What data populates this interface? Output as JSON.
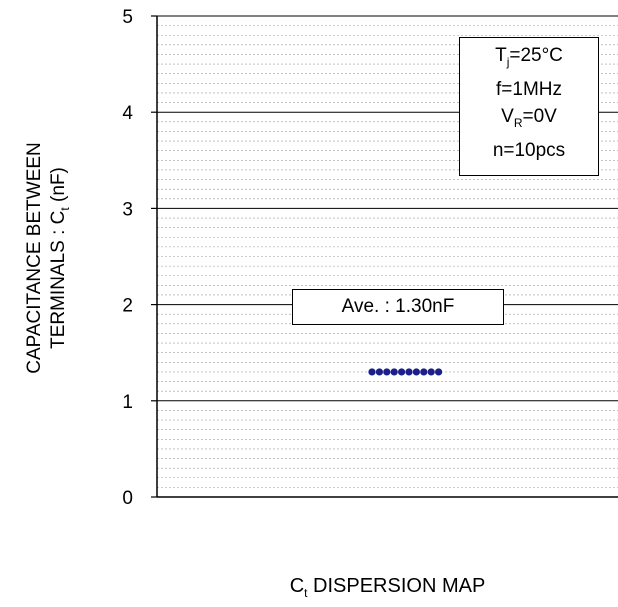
{
  "chart_data": {
    "type": "scatter",
    "title": "",
    "xlabel_main": "C",
    "xlabel_sub": "t",
    "xlabel_rest": " DISPERSION MAP",
    "ylabel_line1": "CAPACITANCE BETWEEN",
    "ylabel_line2_main": "TERMINALS : C",
    "ylabel_line2_sub": "t",
    "ylabel_line2_rest": " (nF)",
    "ylim": [
      0,
      5
    ],
    "yticks": [
      "0",
      "1",
      "2",
      "3",
      "4",
      "5"
    ],
    "major_grid_step": 1,
    "minor_grid_step": 0.1,
    "marker_color": "#1b1f8a",
    "points": [
      1.3,
      1.3,
      1.3,
      1.3,
      1.3,
      1.3,
      1.3,
      1.3,
      1.3,
      1.3
    ],
    "average_label": "Ave. : 1.30nF",
    "conditions": {
      "tj_main": "T",
      "tj_sub": "j",
      "tj_rest": "=25°C",
      "freq": "f=1MHz",
      "vr_main": "V",
      "vr_sub": "R",
      "vr_rest": "=0V",
      "count": "n=10pcs"
    }
  }
}
